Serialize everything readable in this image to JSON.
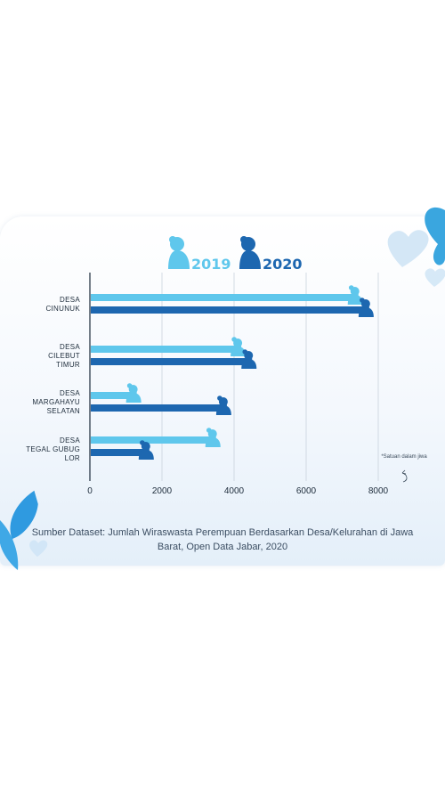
{
  "chart_data": {
    "type": "bar",
    "orientation": "horizontal",
    "categories": [
      [
        "DESA",
        "CINUNUK"
      ],
      [
        "DESA",
        "CILEBUT",
        "TIMUR"
      ],
      [
        "DESA",
        "MARGAHAYU",
        "SELATAN"
      ],
      [
        "DESA",
        "TEGAL GUBUG",
        "LOR"
      ]
    ],
    "series": [
      {
        "name": "2019",
        "color": "#5fc7ec",
        "values": [
          7450,
          4200,
          1300,
          3500
        ]
      },
      {
        "name": "2020",
        "color": "#1d67b0",
        "values": [
          7750,
          4500,
          3800,
          1650
        ]
      }
    ],
    "x_ticks": [
      "0",
      "2000",
      "4000",
      "6000",
      "8000"
    ],
    "xlim": [
      0,
      8000
    ],
    "grid": true,
    "legend_position": "top-center",
    "unit_note": "*Satuan dalam jiwa",
    "source": "Sumber Dataset: Jumlah Wiraswasta Perempuan Berdasarkan Desa/Kelurahan di Jawa Barat, Open Data Jabar, 2020"
  }
}
